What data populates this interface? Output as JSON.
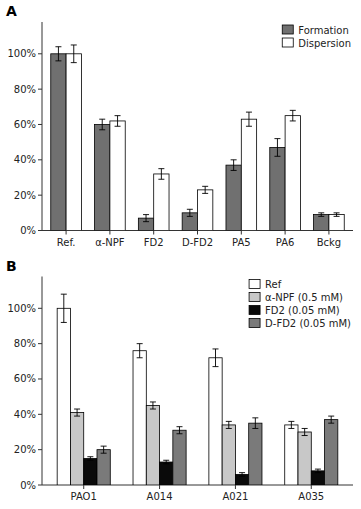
{
  "chart_data": [
    {
      "type": "bar",
      "title": "A",
      "categories": [
        "Ref.",
        "α-NPF",
        "FD2",
        "D-FD2",
        "PA5",
        "PA6",
        "Bckg"
      ],
      "series": [
        {
          "name": "Formation",
          "color": "#707070",
          "values": [
            100,
            60,
            7,
            10,
            37,
            47,
            9
          ],
          "errors": [
            4,
            3,
            2,
            2,
            3,
            5,
            1
          ]
        },
        {
          "name": "Dispersion",
          "color": "#ffffff",
          "values": [
            100,
            62,
            32,
            23,
            63,
            65,
            9
          ],
          "errors": [
            5,
            3,
            3,
            2,
            4,
            3,
            1
          ]
        }
      ],
      "ylim": [
        0,
        118
      ],
      "yticks": [
        {
          "value": 0,
          "label": "0%"
        },
        {
          "value": 20,
          "label": "20%"
        },
        {
          "value": 40,
          "label": "40%"
        },
        {
          "value": 60,
          "label": "60%"
        },
        {
          "value": 80,
          "label": "80%"
        },
        {
          "value": 100,
          "label": "100%"
        }
      ],
      "grid": false,
      "legend": "upper right"
    },
    {
      "type": "bar",
      "title": "B",
      "categories": [
        "PAO1",
        "A014",
        "A021",
        "A035"
      ],
      "series": [
        {
          "name": "Ref",
          "color": "#ffffff",
          "values": [
            100,
            76,
            72,
            34
          ],
          "errors": [
            8,
            4,
            5,
            2
          ]
        },
        {
          "name": "α-NPF (0.5 mM)",
          "color": "#c8c8c8",
          "values": [
            41,
            45,
            34,
            30
          ],
          "errors": [
            2,
            2,
            2,
            2
          ]
        },
        {
          "name": "FD2 (0.05 mM)",
          "color": "#0a0a0a",
          "values": [
            15,
            13,
            6,
            8
          ],
          "errors": [
            1,
            1,
            1,
            1
          ]
        },
        {
          "name": "D-FD2 (0.05 mM)",
          "color": "#7a7a7a",
          "values": [
            20,
            31,
            35,
            37
          ],
          "errors": [
            2,
            2,
            3,
            2
          ]
        }
      ],
      "ylim": [
        0,
        118
      ],
      "yticks": [
        {
          "value": 0,
          "label": "0%"
        },
        {
          "value": 20,
          "label": "20%"
        },
        {
          "value": 40,
          "label": "40%"
        },
        {
          "value": 60,
          "label": "60%"
        },
        {
          "value": 80,
          "label": "80%"
        },
        {
          "value": 100,
          "label": "100%"
        }
      ],
      "grid": false,
      "legend": "upper right"
    }
  ]
}
